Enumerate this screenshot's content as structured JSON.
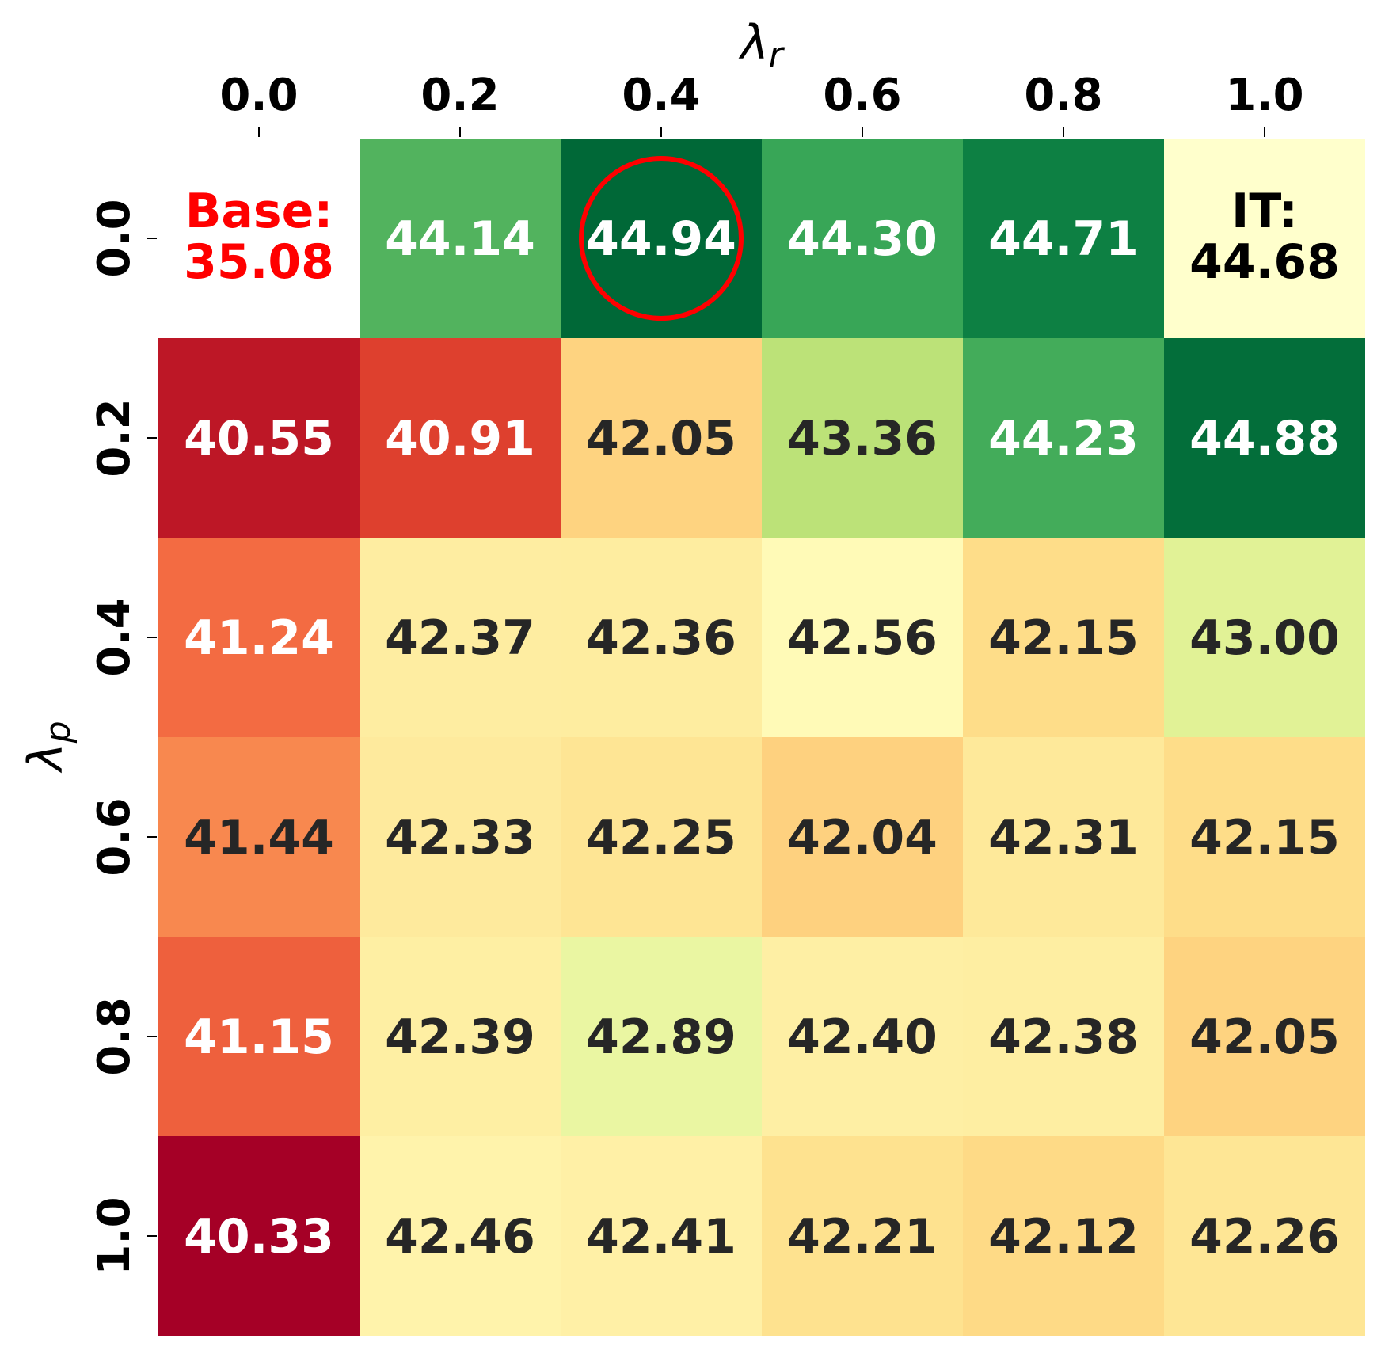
{
  "chart_data": {
    "type": "heatmap",
    "title": "",
    "xlabel": "λ",
    "xlabel_sub": "r",
    "ylabel": "λ",
    "ylabel_sub": "p",
    "x_ticks": [
      "0.0",
      "0.2",
      "0.4",
      "0.6",
      "0.8",
      "1.0"
    ],
    "y_ticks": [
      "0.0",
      "0.2",
      "0.4",
      "0.6",
      "0.8",
      "1.0"
    ],
    "x_axis_position": "top",
    "colormap": "RdYlGn",
    "color_range": [
      40.33,
      44.94
    ],
    "values": [
      [
        null,
        44.14,
        44.94,
        44.3,
        44.71,
        null
      ],
      [
        40.55,
        40.91,
        42.05,
        43.36,
        44.23,
        44.88
      ],
      [
        41.24,
        42.37,
        42.36,
        42.56,
        42.15,
        43.0
      ],
      [
        41.44,
        42.33,
        42.25,
        42.04,
        42.31,
        42.15
      ],
      [
        41.15,
        42.39,
        42.89,
        42.4,
        42.38,
        42.05
      ],
      [
        40.33,
        42.46,
        42.41,
        42.21,
        42.12,
        42.26
      ]
    ],
    "cell_labels": [
      [
        "",
        "44.14",
        "44.94",
        "44.30",
        "44.71",
        ""
      ],
      [
        "40.55",
        "40.91",
        "42.05",
        "43.36",
        "44.23",
        "44.88"
      ],
      [
        "41.24",
        "42.37",
        "42.36",
        "42.56",
        "42.15",
        "43.00"
      ],
      [
        "41.44",
        "42.33",
        "42.25",
        "42.04",
        "42.31",
        "42.15"
      ],
      [
        "41.15",
        "42.39",
        "42.89",
        "42.40",
        "42.38",
        "42.05"
      ],
      [
        "40.33",
        "42.46",
        "42.41",
        "42.21",
        "42.12",
        "42.26"
      ]
    ],
    "special_cells": [
      {
        "row": 0,
        "col": 0,
        "lines": [
          "Base:",
          "35.08"
        ],
        "text_color": "#ff0000",
        "fill": "#ffffff"
      },
      {
        "row": 0,
        "col": 5,
        "lines": [
          "IT:",
          "44.68"
        ],
        "text_color": "#000000",
        "fill": "#ffffcc"
      }
    ],
    "highlight": {
      "row": 0,
      "col": 2,
      "shape": "circle",
      "color": "#ff0000"
    },
    "grid": false,
    "legend": "none",
    "dark_text_color": "#262626",
    "light_text_color": "#ffffff"
  }
}
